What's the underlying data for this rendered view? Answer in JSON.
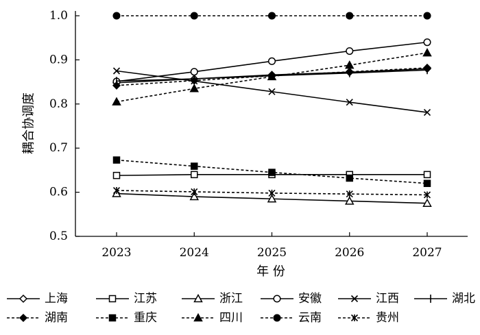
{
  "chart_data": {
    "type": "line",
    "xlabel": "年 份",
    "ylabel": "耦合协调度",
    "categories": [
      "2023",
      "2024",
      "2025",
      "2026",
      "2027"
    ],
    "ylim": [
      0.5,
      1.0
    ],
    "yticks": [
      "0.5",
      "0.6",
      "0.7",
      "0.8",
      "0.9",
      "1.0"
    ],
    "grid": false,
    "legend_position": "bottom",
    "series": [
      {
        "name": "上海",
        "marker": "diamond-open",
        "line": "solid",
        "values": [
          0.848,
          0.857,
          0.866,
          0.872,
          0.88
        ]
      },
      {
        "name": "江苏",
        "marker": "square-open",
        "line": "solid",
        "values": [
          0.638,
          0.64,
          0.64,
          0.64,
          0.64
        ]
      },
      {
        "name": "浙江",
        "marker": "triangle-open",
        "line": "solid",
        "values": [
          0.597,
          0.59,
          0.585,
          0.58,
          0.575
        ]
      },
      {
        "name": "安徽",
        "marker": "circle-open",
        "line": "solid",
        "values": [
          0.851,
          0.873,
          0.897,
          0.92,
          0.94
        ]
      },
      {
        "name": "江西",
        "marker": "x",
        "line": "solid",
        "values": [
          0.875,
          0.852,
          0.828,
          0.804,
          0.781
        ]
      },
      {
        "name": "湖北",
        "marker": "plus",
        "line": "solid",
        "values": [
          0.852,
          0.857,
          0.864,
          0.87,
          0.877
        ]
      },
      {
        "name": "湖南",
        "marker": "diamond-filled",
        "line": "dashed",
        "values": [
          0.842,
          0.853,
          0.864,
          0.873,
          0.882
        ]
      },
      {
        "name": "重庆",
        "marker": "square-filled",
        "line": "dashed",
        "values": [
          0.673,
          0.659,
          0.645,
          0.632,
          0.62
        ]
      },
      {
        "name": "四川",
        "marker": "triangle-filled",
        "line": "dashed",
        "values": [
          0.805,
          0.835,
          0.862,
          0.888,
          0.916
        ]
      },
      {
        "name": "云南",
        "marker": "circle-filled",
        "line": "dashed",
        "values": [
          1.0,
          1.0,
          1.0,
          1.0,
          1.0
        ]
      },
      {
        "name": "贵州",
        "marker": "asterisk",
        "line": "dashed",
        "values": [
          0.604,
          0.601,
          0.598,
          0.596,
          0.594
        ]
      }
    ]
  }
}
